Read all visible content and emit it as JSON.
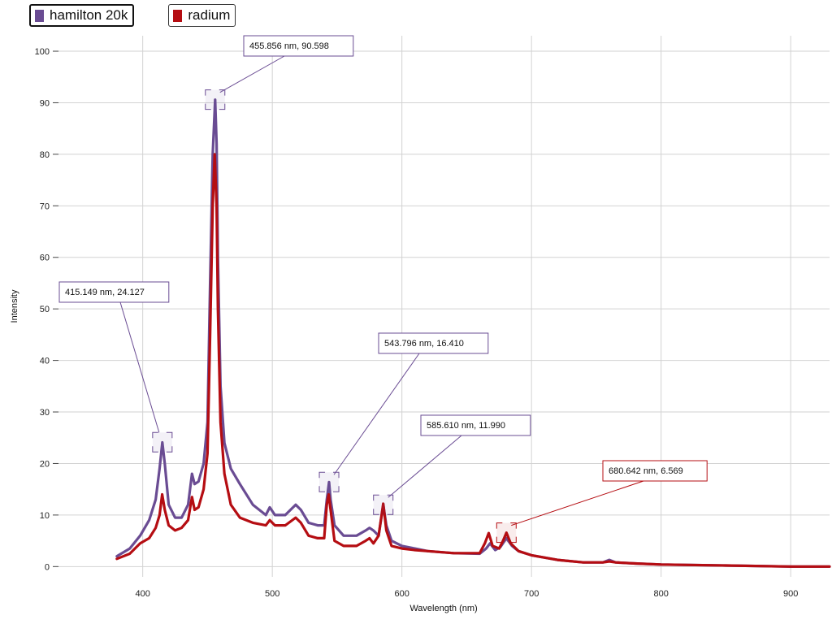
{
  "legend": {
    "items": [
      {
        "label": "hamilton 20k",
        "color": "#6a4c93",
        "active": true
      },
      {
        "label": "radium",
        "color": "#b50d12",
        "active": false
      }
    ]
  },
  "chart_data": {
    "type": "line",
    "xlabel": "Wavelength (nm)",
    "ylabel": "Intensity",
    "xlim": [
      335,
      930
    ],
    "ylim": [
      -2,
      103
    ],
    "x_ticks": [
      400,
      500,
      600,
      700,
      800,
      900
    ],
    "y_ticks": [
      0,
      10,
      20,
      30,
      40,
      50,
      60,
      70,
      80,
      90,
      100
    ],
    "grid": true,
    "legend_position": "top-left",
    "series": [
      {
        "name": "hamilton 20k",
        "color": "#6a4c93",
        "points": [
          [
            380,
            2
          ],
          [
            390,
            3.5
          ],
          [
            398,
            6
          ],
          [
            405,
            9
          ],
          [
            410,
            13
          ],
          [
            413,
            19
          ],
          [
            415.149,
            24.1
          ],
          [
            417,
            20
          ],
          [
            420,
            12
          ],
          [
            425,
            9.5
          ],
          [
            430,
            9.5
          ],
          [
            435,
            12
          ],
          [
            438,
            18
          ],
          [
            440,
            16
          ],
          [
            443,
            16.5
          ],
          [
            447,
            20
          ],
          [
            450,
            28
          ],
          [
            452,
            55
          ],
          [
            454,
            80
          ],
          [
            455.856,
            90.6
          ],
          [
            457,
            82
          ],
          [
            458,
            60
          ],
          [
            460,
            35
          ],
          [
            463,
            24
          ],
          [
            468,
            19
          ],
          [
            475,
            16
          ],
          [
            485,
            12
          ],
          [
            495,
            10
          ],
          [
            498,
            11.5
          ],
          [
            502,
            10
          ],
          [
            510,
            10
          ],
          [
            518,
            12
          ],
          [
            522,
            11
          ],
          [
            528,
            8.5
          ],
          [
            535,
            8
          ],
          [
            540,
            8
          ],
          [
            542,
            13
          ],
          [
            543.796,
            16.4
          ],
          [
            545,
            13
          ],
          [
            548,
            8
          ],
          [
            555,
            6
          ],
          [
            565,
            6
          ],
          [
            572,
            7
          ],
          [
            575,
            7.5
          ],
          [
            578,
            7
          ],
          [
            582,
            6
          ],
          [
            585.61,
            11.99
          ],
          [
            588,
            8
          ],
          [
            592,
            5
          ],
          [
            600,
            4
          ],
          [
            610,
            3.5
          ],
          [
            620,
            3
          ],
          [
            640,
            2.6
          ],
          [
            660,
            2.5
          ],
          [
            665,
            3.5
          ],
          [
            668,
            4.5
          ],
          [
            672,
            3.2
          ],
          [
            676,
            3.8
          ],
          [
            680.642,
            5.5
          ],
          [
            685,
            4
          ],
          [
            690,
            3
          ],
          [
            700,
            2.2
          ],
          [
            720,
            1.3
          ],
          [
            740,
            0.8
          ],
          [
            755,
            0.8
          ],
          [
            760,
            1.3
          ],
          [
            765,
            0.8
          ],
          [
            780,
            0.6
          ],
          [
            800,
            0.4
          ],
          [
            850,
            0.2
          ],
          [
            900,
            0
          ],
          [
            930,
            0
          ]
        ]
      },
      {
        "name": "radium",
        "color": "#b50d12",
        "points": [
          [
            380,
            1.5
          ],
          [
            390,
            2.5
          ],
          [
            398,
            4.5
          ],
          [
            405,
            5.5
          ],
          [
            410,
            7.5
          ],
          [
            413,
            10
          ],
          [
            415,
            14
          ],
          [
            417,
            11
          ],
          [
            420,
            8
          ],
          [
            425,
            7
          ],
          [
            430,
            7.5
          ],
          [
            435,
            9
          ],
          [
            438,
            13.5
          ],
          [
            440,
            11
          ],
          [
            443,
            11.5
          ],
          [
            447,
            15
          ],
          [
            450,
            22
          ],
          [
            452,
            45
          ],
          [
            454,
            70
          ],
          [
            455.5,
            80
          ],
          [
            457,
            70
          ],
          [
            458,
            50
          ],
          [
            460,
            28
          ],
          [
            463,
            18
          ],
          [
            468,
            12
          ],
          [
            475,
            9.5
          ],
          [
            485,
            8.5
          ],
          [
            495,
            8
          ],
          [
            498,
            9
          ],
          [
            502,
            8
          ],
          [
            510,
            8
          ],
          [
            518,
            9.5
          ],
          [
            522,
            8.5
          ],
          [
            528,
            6
          ],
          [
            535,
            5.5
          ],
          [
            540,
            5.5
          ],
          [
            542,
            12
          ],
          [
            543.5,
            14
          ],
          [
            545,
            11
          ],
          [
            548,
            5
          ],
          [
            555,
            4
          ],
          [
            565,
            4
          ],
          [
            572,
            5
          ],
          [
            575,
            5.5
          ],
          [
            578,
            4.5
          ],
          [
            582,
            6
          ],
          [
            585.61,
            12.2
          ],
          [
            588,
            7
          ],
          [
            592,
            4
          ],
          [
            600,
            3.5
          ],
          [
            610,
            3.2
          ],
          [
            620,
            3
          ],
          [
            640,
            2.6
          ],
          [
            660,
            2.6
          ],
          [
            664,
            4.5
          ],
          [
            667,
            6.5
          ],
          [
            670,
            4
          ],
          [
            675,
            3.5
          ],
          [
            678,
            5
          ],
          [
            680.642,
            6.57
          ],
          [
            684,
            4.5
          ],
          [
            690,
            3
          ],
          [
            700,
            2.2
          ],
          [
            720,
            1.3
          ],
          [
            740,
            0.8
          ],
          [
            755,
            0.8
          ],
          [
            760,
            1
          ],
          [
            765,
            0.8
          ],
          [
            780,
            0.6
          ],
          [
            800,
            0.4
          ],
          [
            850,
            0.2
          ],
          [
            900,
            0
          ],
          [
            930,
            0
          ]
        ]
      }
    ],
    "annotations": [
      {
        "text": "415.149 nm, 24.127",
        "x": 415.149,
        "y": 24.127,
        "series": "hamilton 20k",
        "color": "#6a4c93"
      },
      {
        "text": "455.856 nm, 90.598",
        "x": 455.856,
        "y": 90.598,
        "series": "hamilton 20k",
        "color": "#6a4c93"
      },
      {
        "text": "543.796 nm, 16.410",
        "x": 543.796,
        "y": 16.41,
        "series": "hamilton 20k",
        "color": "#6a4c93"
      },
      {
        "text": "585.610 nm, 11.990",
        "x": 585.61,
        "y": 11.99,
        "series": "hamilton 20k",
        "color": "#6a4c93"
      },
      {
        "text": "680.642 nm, 6.569",
        "x": 680.642,
        "y": 6.569,
        "series": "radium",
        "color": "#b50d12"
      }
    ]
  }
}
